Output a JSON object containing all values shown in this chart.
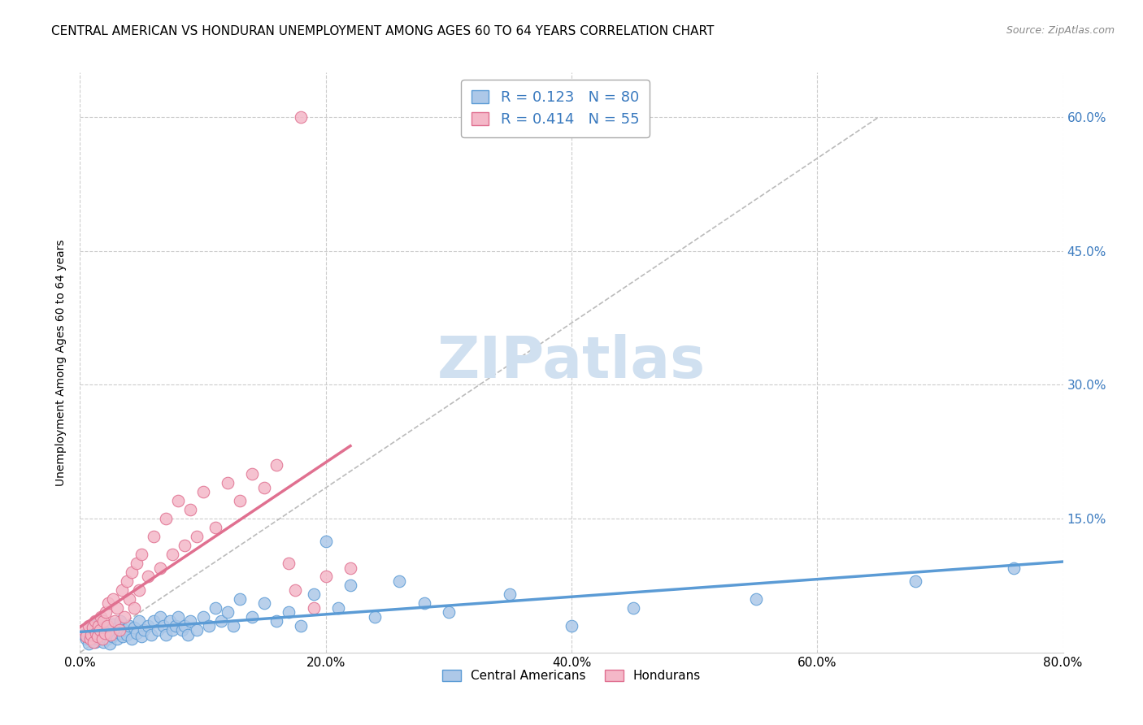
{
  "title": "CENTRAL AMERICAN VS HONDURAN UNEMPLOYMENT AMONG AGES 60 TO 64 YEARS CORRELATION CHART",
  "source": "Source: ZipAtlas.com",
  "ylabel": "Unemployment Among Ages 60 to 64 years",
  "xlim": [
    0.0,
    0.8
  ],
  "ylim": [
    0.0,
    0.65
  ],
  "xticks": [
    0.0,
    0.2,
    0.4,
    0.6,
    0.8
  ],
  "xticklabels": [
    "0.0%",
    "20.0%",
    "40.0%",
    "60.0%",
    "80.0%"
  ],
  "yticks_right": [
    0.15,
    0.3,
    0.45,
    0.6
  ],
  "yticklabels_right": [
    "15.0%",
    "30.0%",
    "45.0%",
    "60.0%"
  ],
  "ca_color": "#adc8e8",
  "ca_edge_color": "#5b9bd5",
  "hon_color": "#f4b8c8",
  "hon_edge_color": "#e07090",
  "ca_R": 0.123,
  "ca_N": 80,
  "hon_R": 0.414,
  "hon_N": 55,
  "tick_color": "#3a7abf",
  "background_color": "#ffffff",
  "grid_color": "#cccccc",
  "title_fontsize": 11,
  "axis_label_fontsize": 10,
  "tick_fontsize": 11,
  "legend_fontsize": 13,
  "watermark_color": "#d0e0f0",
  "ca_x": [
    0.003,
    0.005,
    0.007,
    0.008,
    0.009,
    0.01,
    0.01,
    0.012,
    0.013,
    0.014,
    0.015,
    0.016,
    0.017,
    0.018,
    0.019,
    0.02,
    0.021,
    0.022,
    0.023,
    0.024,
    0.025,
    0.026,
    0.027,
    0.028,
    0.03,
    0.031,
    0.032,
    0.033,
    0.035,
    0.036,
    0.038,
    0.04,
    0.042,
    0.044,
    0.046,
    0.048,
    0.05,
    0.052,
    0.055,
    0.058,
    0.06,
    0.063,
    0.065,
    0.068,
    0.07,
    0.073,
    0.075,
    0.078,
    0.08,
    0.083,
    0.085,
    0.088,
    0.09,
    0.095,
    0.1,
    0.105,
    0.11,
    0.115,
    0.12,
    0.125,
    0.13,
    0.14,
    0.15,
    0.16,
    0.17,
    0.18,
    0.19,
    0.2,
    0.21,
    0.22,
    0.24,
    0.26,
    0.28,
    0.3,
    0.35,
    0.4,
    0.45,
    0.55,
    0.68,
    0.76
  ],
  "ca_y": [
    0.02,
    0.015,
    0.01,
    0.025,
    0.018,
    0.022,
    0.03,
    0.012,
    0.028,
    0.015,
    0.02,
    0.035,
    0.018,
    0.025,
    0.012,
    0.03,
    0.022,
    0.015,
    0.028,
    0.01,
    0.025,
    0.018,
    0.032,
    0.02,
    0.015,
    0.028,
    0.022,
    0.035,
    0.018,
    0.025,
    0.02,
    0.03,
    0.015,
    0.028,
    0.022,
    0.035,
    0.018,
    0.025,
    0.03,
    0.02,
    0.035,
    0.025,
    0.04,
    0.03,
    0.02,
    0.035,
    0.025,
    0.03,
    0.04,
    0.025,
    0.03,
    0.02,
    0.035,
    0.025,
    0.04,
    0.03,
    0.05,
    0.035,
    0.045,
    0.03,
    0.06,
    0.04,
    0.055,
    0.035,
    0.045,
    0.03,
    0.065,
    0.125,
    0.05,
    0.075,
    0.04,
    0.08,
    0.055,
    0.045,
    0.065,
    0.03,
    0.05,
    0.06,
    0.08,
    0.095
  ],
  "hon_x": [
    0.003,
    0.005,
    0.007,
    0.008,
    0.009,
    0.01,
    0.011,
    0.012,
    0.013,
    0.014,
    0.015,
    0.016,
    0.017,
    0.018,
    0.019,
    0.02,
    0.021,
    0.022,
    0.023,
    0.025,
    0.027,
    0.028,
    0.03,
    0.032,
    0.034,
    0.036,
    0.038,
    0.04,
    0.042,
    0.044,
    0.046,
    0.048,
    0.05,
    0.055,
    0.06,
    0.065,
    0.07,
    0.075,
    0.08,
    0.085,
    0.09,
    0.095,
    0.1,
    0.11,
    0.12,
    0.13,
    0.14,
    0.15,
    0.16,
    0.17,
    0.175,
    0.18,
    0.19,
    0.2,
    0.22
  ],
  "hon_y": [
    0.025,
    0.018,
    0.03,
    0.015,
    0.02,
    0.028,
    0.012,
    0.035,
    0.022,
    0.018,
    0.03,
    0.025,
    0.04,
    0.015,
    0.035,
    0.022,
    0.045,
    0.03,
    0.055,
    0.02,
    0.06,
    0.035,
    0.05,
    0.025,
    0.07,
    0.04,
    0.08,
    0.06,
    0.09,
    0.05,
    0.1,
    0.07,
    0.11,
    0.085,
    0.13,
    0.095,
    0.15,
    0.11,
    0.17,
    0.12,
    0.16,
    0.13,
    0.18,
    0.14,
    0.19,
    0.17,
    0.2,
    0.185,
    0.21,
    0.1,
    0.07,
    0.6,
    0.05,
    0.085,
    0.095
  ]
}
